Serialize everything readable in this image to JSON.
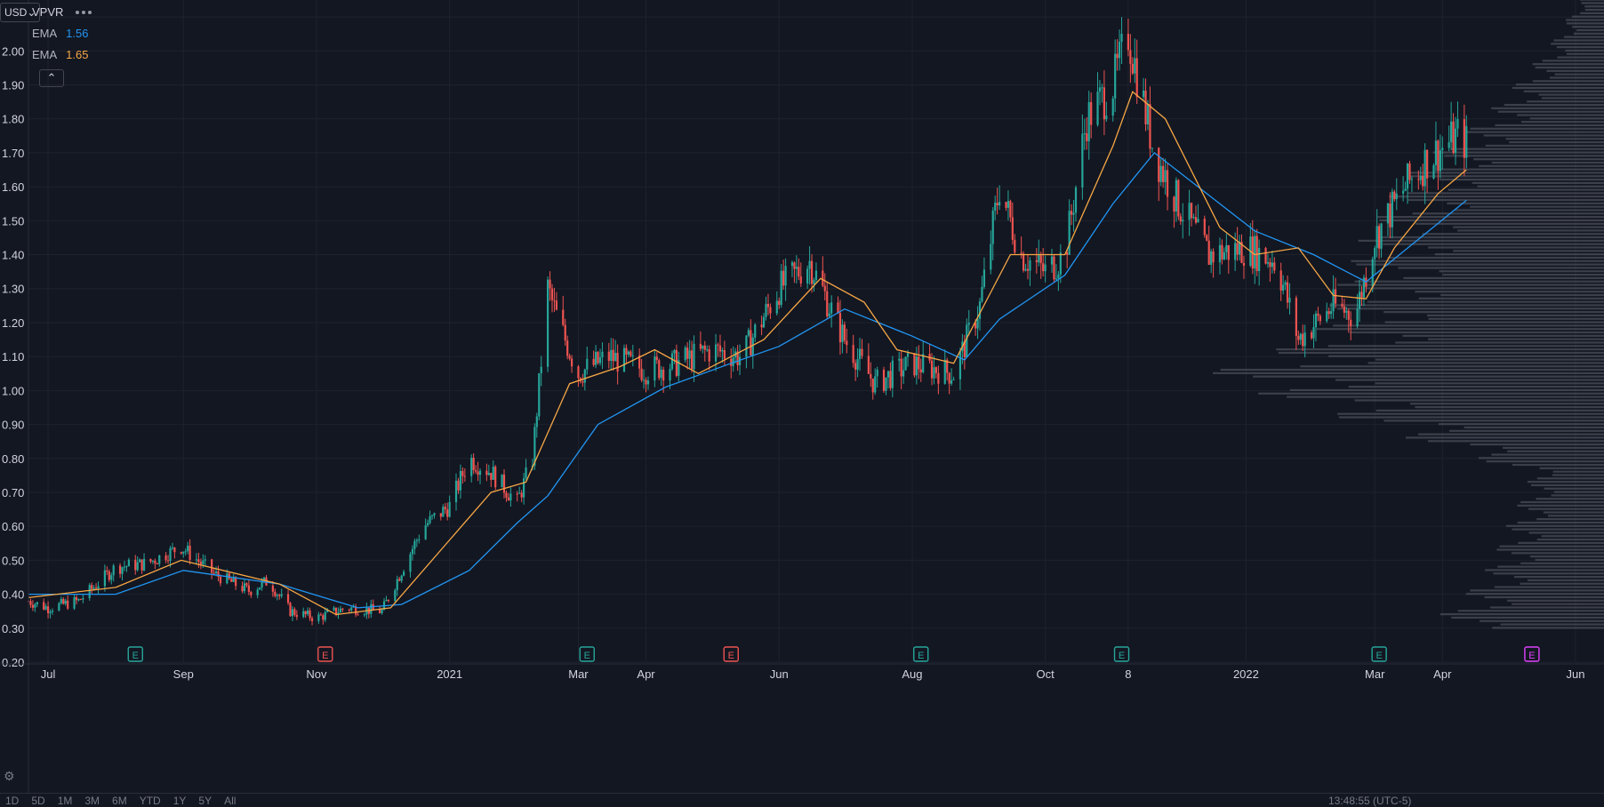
{
  "symbol": "VPVR",
  "currency": "USD",
  "legend": [
    {
      "label": "EMA",
      "value": "1.56",
      "color": "#2196f3"
    },
    {
      "label": "EMA",
      "value": "1.65",
      "color": "#f7a745"
    }
  ],
  "colors": {
    "background": "#131722",
    "up": "#26a69a",
    "down": "#ef5350",
    "grid": "#1e222d"
  },
  "bottom_bar": {
    "timeframes": [
      "1D",
      "5D",
      "1M",
      "3M",
      "6M",
      "YTD",
      "1Y",
      "5Y",
      "All"
    ],
    "clock": "13:48:55 (UTC-5)"
  },
  "chart_data": {
    "type": "candlestick",
    "y_axis": {
      "min": 0.2,
      "max": 2.15,
      "ticks": [
        "2.10",
        "2.00",
        "1.90",
        "1.80",
        "1.70",
        "1.60",
        "1.50",
        "1.40",
        "1.30",
        "1.20",
        "1.10",
        "1.00",
        "0.90",
        "0.80",
        "0.70",
        "0.60",
        "0.50",
        "0.40",
        "0.30",
        "0.20"
      ]
    },
    "x_axis": {
      "start": "2020-06-22",
      "end": "2022-06-01",
      "ticks": [
        {
          "label": "Jul",
          "date": "2020-07-01"
        },
        {
          "label": "Sep",
          "date": "2020-09-01"
        },
        {
          "label": "Nov",
          "date": "2020-11-01"
        },
        {
          "label": "2021",
          "date": "2021-01-01"
        },
        {
          "label": "Mar",
          "date": "2021-03-01"
        },
        {
          "label": "Apr",
          "date": "2021-04-01"
        },
        {
          "label": "Jun",
          "date": "2021-06-01"
        },
        {
          "label": "Aug",
          "date": "2021-08-01"
        },
        {
          "label": "Oct",
          "date": "2021-10-01"
        },
        {
          "label": "8",
          "date": "2021-11-08"
        },
        {
          "label": "2022",
          "date": "2022-01-01"
        },
        {
          "label": "Mar",
          "date": "2022-03-01"
        },
        {
          "label": "Apr",
          "date": "2022-04-01"
        },
        {
          "label": "Jun",
          "date": "2022-06-01"
        }
      ]
    },
    "price_path": [
      [
        "2020-06-22",
        0.38
      ],
      [
        "2020-07-01",
        0.36
      ],
      [
        "2020-07-15",
        0.38
      ],
      [
        "2020-08-01",
        0.48
      ],
      [
        "2020-08-15",
        0.49
      ],
      [
        "2020-08-31",
        0.54
      ],
      [
        "2020-09-15",
        0.46
      ],
      [
        "2020-10-01",
        0.41
      ],
      [
        "2020-10-10",
        0.44
      ],
      [
        "2020-10-20",
        0.35
      ],
      [
        "2020-11-01",
        0.33
      ],
      [
        "2020-11-15",
        0.36
      ],
      [
        "2020-12-01",
        0.35
      ],
      [
        "2020-12-10",
        0.47
      ],
      [
        "2020-12-20",
        0.6
      ],
      [
        "2021-01-01",
        0.66
      ],
      [
        "2021-01-10",
        0.8
      ],
      [
        "2021-01-20",
        0.76
      ],
      [
        "2021-02-01",
        0.67
      ],
      [
        "2021-02-08",
        0.8
      ],
      [
        "2021-02-15",
        1.3
      ],
      [
        "2021-02-20",
        1.2
      ],
      [
        "2021-03-01",
        1.05
      ],
      [
        "2021-03-15",
        1.1
      ],
      [
        "2021-04-01",
        1.06
      ],
      [
        "2021-04-15",
        1.08
      ],
      [
        "2021-05-01",
        1.12
      ],
      [
        "2021-05-15",
        1.1
      ],
      [
        "2021-06-01",
        1.3
      ],
      [
        "2021-06-15",
        1.38
      ],
      [
        "2021-07-01",
        1.15
      ],
      [
        "2021-07-15",
        1.02
      ],
      [
        "2021-08-01",
        1.08
      ],
      [
        "2021-08-20",
        1.05
      ],
      [
        "2021-09-01",
        1.25
      ],
      [
        "2021-09-10",
        1.6
      ],
      [
        "2021-09-20",
        1.4
      ],
      [
        "2021-10-01",
        1.35
      ],
      [
        "2021-10-10",
        1.4
      ],
      [
        "2021-10-20",
        1.8
      ],
      [
        "2021-11-01",
        1.9
      ],
      [
        "2021-11-08",
        2.05
      ],
      [
        "2021-11-20",
        1.7
      ],
      [
        "2021-12-01",
        1.55
      ],
      [
        "2021-12-15",
        1.4
      ],
      [
        "2022-01-01",
        1.42
      ],
      [
        "2022-01-15",
        1.38
      ],
      [
        "2022-01-25",
        1.15
      ],
      [
        "2022-02-10",
        1.25
      ],
      [
        "2022-02-20",
        1.22
      ],
      [
        "2022-03-01",
        1.45
      ],
      [
        "2022-03-15",
        1.6
      ],
      [
        "2022-03-25",
        1.68
      ],
      [
        "2022-04-08",
        1.75
      ],
      [
        "2022-04-12",
        1.73
      ]
    ],
    "ema_fast_path": [
      [
        "2020-06-22",
        0.39
      ],
      [
        "2020-08-01",
        0.42
      ],
      [
        "2020-08-31",
        0.5
      ],
      [
        "2020-10-15",
        0.43
      ],
      [
        "2020-11-10",
        0.34
      ],
      [
        "2020-12-05",
        0.36
      ],
      [
        "2021-01-01",
        0.56
      ],
      [
        "2021-01-20",
        0.7
      ],
      [
        "2021-02-05",
        0.73
      ],
      [
        "2021-02-25",
        1.02
      ],
      [
        "2021-03-20",
        1.07
      ],
      [
        "2021-04-05",
        1.12
      ],
      [
        "2021-04-25",
        1.05
      ],
      [
        "2021-05-25",
        1.15
      ],
      [
        "2021-06-20",
        1.33
      ],
      [
        "2021-07-10",
        1.26
      ],
      [
        "2021-07-25",
        1.12
      ],
      [
        "2021-08-20",
        1.08
      ],
      [
        "2021-09-15",
        1.4
      ],
      [
        "2021-10-10",
        1.4
      ],
      [
        "2021-11-01",
        1.72
      ],
      [
        "2021-11-10",
        1.88
      ],
      [
        "2021-11-25",
        1.8
      ],
      [
        "2021-12-20",
        1.48
      ],
      [
        "2022-01-05",
        1.4
      ],
      [
        "2022-01-25",
        1.42
      ],
      [
        "2022-02-10",
        1.28
      ],
      [
        "2022-02-25",
        1.27
      ],
      [
        "2022-03-10",
        1.42
      ],
      [
        "2022-03-30",
        1.58
      ],
      [
        "2022-04-12",
        1.65
      ]
    ],
    "ema_slow_path": [
      [
        "2020-06-22",
        0.4
      ],
      [
        "2020-08-01",
        0.4
      ],
      [
        "2020-09-01",
        0.47
      ],
      [
        "2020-10-15",
        0.43
      ],
      [
        "2020-11-20",
        0.36
      ],
      [
        "2020-12-10",
        0.37
      ],
      [
        "2021-01-10",
        0.47
      ],
      [
        "2021-02-01",
        0.61
      ],
      [
        "2021-02-15",
        0.69
      ],
      [
        "2021-03-10",
        0.9
      ],
      [
        "2021-04-10",
        1.01
      ],
      [
        "2021-05-10",
        1.08
      ],
      [
        "2021-06-01",
        1.13
      ],
      [
        "2021-07-01",
        1.24
      ],
      [
        "2021-08-01",
        1.16
      ],
      [
        "2021-08-25",
        1.09
      ],
      [
        "2021-09-10",
        1.21
      ],
      [
        "2021-10-10",
        1.34
      ],
      [
        "2021-11-01",
        1.55
      ],
      [
        "2021-11-20",
        1.7
      ],
      [
        "2021-12-10",
        1.6
      ],
      [
        "2022-01-05",
        1.47
      ],
      [
        "2022-02-01",
        1.4
      ],
      [
        "2022-02-25",
        1.32
      ],
      [
        "2022-03-20",
        1.44
      ],
      [
        "2022-04-12",
        1.56
      ]
    ],
    "earnings_events": [
      {
        "date": "2020-08-10",
        "label": "E",
        "type": "up"
      },
      {
        "date": "2020-11-05",
        "label": "E",
        "type": "down"
      },
      {
        "date": "2021-03-05",
        "label": "E",
        "type": "up"
      },
      {
        "date": "2021-05-10",
        "label": "E",
        "type": "down"
      },
      {
        "date": "2021-08-05",
        "label": "E",
        "type": "up"
      },
      {
        "date": "2021-11-05",
        "label": "E",
        "type": "up"
      },
      {
        "date": "2022-03-03",
        "label": "E",
        "type": "up"
      },
      {
        "date": "2022-05-12",
        "label": "E",
        "type": "upcoming"
      }
    ],
    "volume_profile": {
      "bin_size": 0.01,
      "peak_price": 1.08,
      "levels": [
        [
          0.32,
          0.35
        ],
        [
          0.45,
          0.25
        ],
        [
          0.75,
          0.15
        ],
        [
          1.05,
          0.85
        ],
        [
          1.15,
          0.6
        ],
        [
          1.3,
          0.55
        ],
        [
          1.45,
          0.5
        ],
        [
          1.65,
          0.4
        ],
        [
          1.8,
          0.25
        ],
        [
          2.0,
          0.12
        ],
        [
          2.15,
          0.05
        ]
      ]
    },
    "grid": true
  }
}
